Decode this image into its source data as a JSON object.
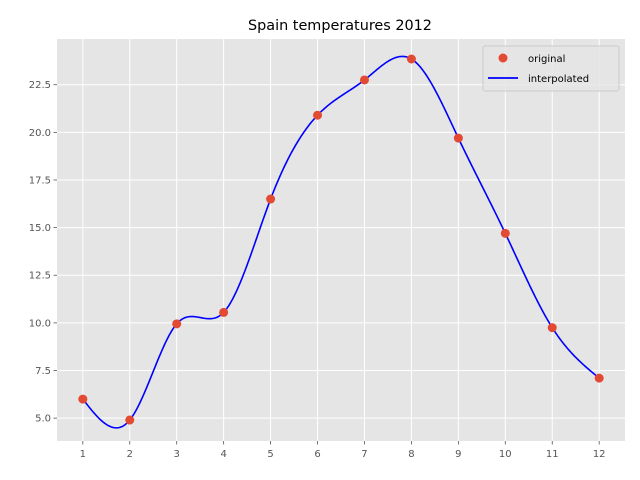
{
  "chart_data": {
    "type": "line",
    "title": "Spain temperatures 2012",
    "xlabel": "",
    "ylabel": "",
    "x": [
      1,
      2,
      3,
      4,
      5,
      6,
      7,
      8,
      9,
      10,
      11,
      12
    ],
    "xlim": [
      0.45,
      12.55
    ],
    "ylim": [
      3.8,
      24.9
    ],
    "xticks": [
      "1",
      "2",
      "3",
      "4",
      "5",
      "6",
      "7",
      "8",
      "9",
      "10",
      "11",
      "12"
    ],
    "yticks": [
      "5.0",
      "7.5",
      "10.0",
      "12.5",
      "15.0",
      "17.5",
      "20.0",
      "22.5"
    ],
    "grid": true,
    "legend_position": "top-right",
    "series": [
      {
        "name": "original",
        "style": "markers",
        "color": "#E24A33",
        "values": [
          6.0,
          4.9,
          9.95,
          10.55,
          16.5,
          20.9,
          22.75,
          23.85,
          19.7,
          14.7,
          9.75,
          7.1
        ]
      },
      {
        "name": "interpolated",
        "style": "line",
        "color": "#0000FF",
        "values": [
          6.0,
          4.9,
          9.95,
          10.55,
          16.5,
          20.9,
          22.75,
          23.85,
          19.7,
          14.7,
          9.75,
          7.1
        ]
      }
    ]
  }
}
